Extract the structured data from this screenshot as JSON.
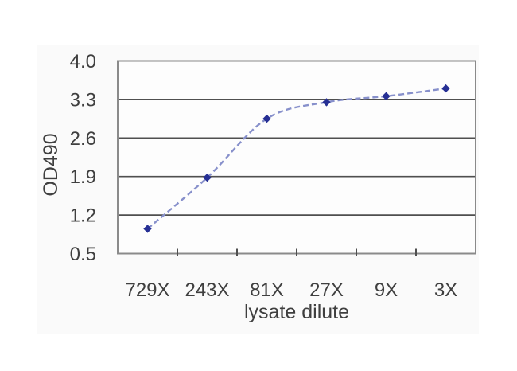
{
  "figure": {
    "page_background": "#ffffff",
    "panel_background": "#fafafa"
  },
  "chart_data": {
    "type": "line",
    "title": "",
    "xlabel": "lysate dilute",
    "ylabel": "OD490",
    "categories": [
      "729X",
      "243X",
      "81X",
      "27X",
      "9X",
      "3X"
    ],
    "series": [
      {
        "name": "OD490",
        "values": [
          0.95,
          1.88,
          2.95,
          3.25,
          3.36,
          3.5
        ]
      }
    ],
    "ylim": [
      0.5,
      4.0
    ],
    "yticks": [
      0.5,
      1.2,
      1.9,
      2.6,
      3.3,
      4.0
    ],
    "ytick_labels": [
      "0.5",
      "1.2",
      "1.9",
      "2.6",
      "3.3",
      "4.0"
    ],
    "grid": "horizontal-gridlines",
    "legend": "none",
    "marker": "diamond",
    "line_style": "dashed-smoothed",
    "colors": {
      "line": "#8790cb",
      "marker": "#262f94",
      "gridline": "#4f4f4f",
      "border": "#8a8a8a",
      "text": "#3f3f3f"
    }
  }
}
